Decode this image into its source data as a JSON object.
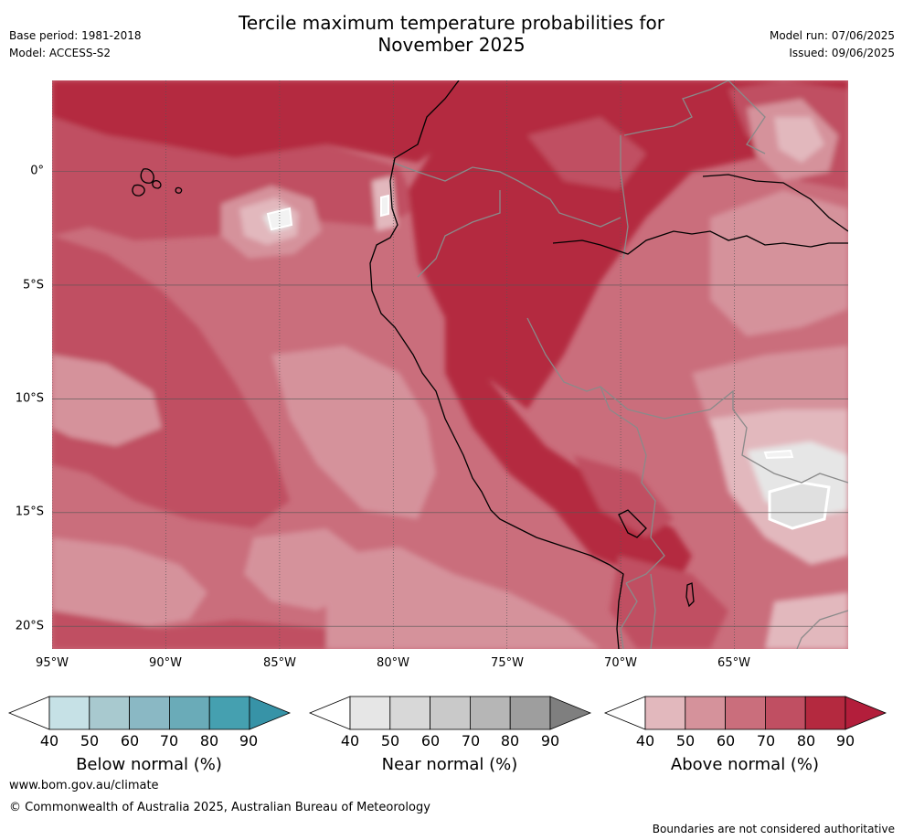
{
  "header": {
    "title_line1": "Tercile maximum temperature probabilities for",
    "title_line2": "November 2025",
    "base_period": "Base period: 1981-2018",
    "model": "Model: ACCESS-S2",
    "model_run": "Model run: 07/06/2025",
    "issued": "Issued: 09/06/2025"
  },
  "map": {
    "lon_labels": [
      "95°W",
      "90°W",
      "85°W",
      "80°W",
      "75°W",
      "70°W",
      "65°W"
    ],
    "lat_labels": [
      "0°",
      "5°S",
      "10°S",
      "15°S",
      "20°S"
    ],
    "extent": {
      "lon_min": -95,
      "lon_max": -60,
      "lat_min": -21,
      "lat_max": 4
    },
    "gridlines": true
  },
  "colorbars": [
    {
      "label": "Below normal (%)",
      "ticks": [
        "40",
        "50",
        "60",
        "70",
        "80",
        "90"
      ],
      "colors": [
        "#ffffff",
        "#c6e1e6",
        "#a8c9cf",
        "#8ab8c4",
        "#6aabb8",
        "#45a0b0",
        "#3793a7"
      ]
    },
    {
      "label": "Near normal (%)",
      "ticks": [
        "40",
        "50",
        "60",
        "70",
        "80",
        "90"
      ],
      "colors": [
        "#ffffff",
        "#e6e6e6",
        "#d8d8d8",
        "#c9c9c9",
        "#b6b6b6",
        "#9e9e9e",
        "#7f7f7f"
      ]
    },
    {
      "label": "Above normal (%)",
      "ticks": [
        "40",
        "50",
        "60",
        "70",
        "80",
        "90"
      ],
      "colors": [
        "#ffffff",
        "#e2b8bd",
        "#d5929b",
        "#ca6e7c",
        "#c04f62",
        "#b4293f",
        "#b31e3b"
      ]
    }
  ],
  "footer": {
    "url": "www.bom.gov.au/climate",
    "copyright": "© Commonwealth of Australia 2025, Australian Bureau of Meteorology",
    "disclaimer": "Boundaries are not considered authoritative"
  }
}
